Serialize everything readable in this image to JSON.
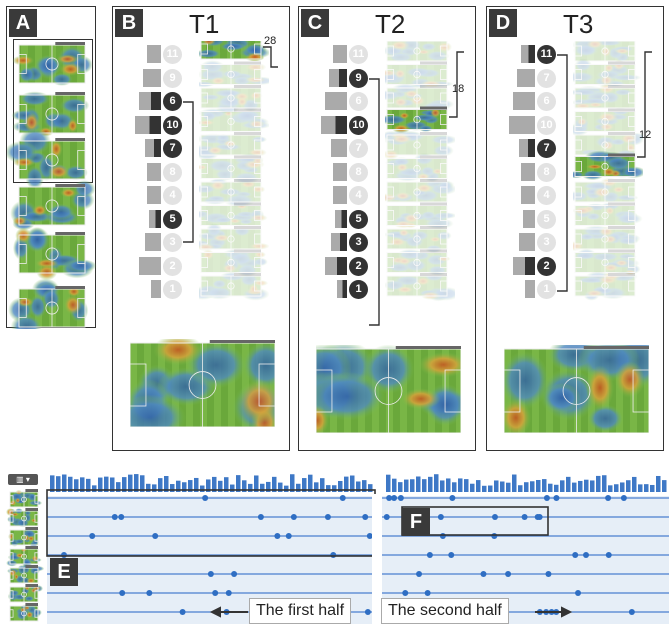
{
  "panels": {
    "A": {
      "tag": "A"
    },
    "B": {
      "tag": "B",
      "title": "T1",
      "count": "28",
      "numbers": [
        "11",
        "9",
        "6",
        "10",
        "7",
        "8",
        "4",
        "5",
        "3",
        "2",
        "1"
      ],
      "active": [
        false,
        false,
        true,
        true,
        true,
        false,
        false,
        true,
        false,
        false,
        false
      ]
    },
    "C": {
      "tag": "C",
      "title": "T2",
      "count": "18",
      "numbers": [
        "11",
        "9",
        "6",
        "10",
        "7",
        "8",
        "4",
        "5",
        "3",
        "2",
        "1"
      ],
      "active": [
        false,
        true,
        false,
        true,
        false,
        false,
        false,
        true,
        true,
        true,
        true
      ]
    },
    "D": {
      "tag": "D",
      "title": "T3",
      "count": "12",
      "numbers": [
        "11",
        "7",
        "6",
        "10",
        "7",
        "8",
        "4",
        "5",
        "3",
        "2",
        "1"
      ],
      "active": [
        true,
        false,
        false,
        false,
        true,
        false,
        false,
        false,
        false,
        true,
        false
      ]
    }
  },
  "timeline": {
    "tag_e": "E",
    "tag_f": "F",
    "first_half": "The first half",
    "second_half": "The second half",
    "toolbar_icon": "chart-icon"
  },
  "colors": {
    "pitch_green": "#6fae3d",
    "heat_blue": "#3b6fb5",
    "heat_red": "#c0392b",
    "timeline_blue": "#2f6ec3"
  }
}
